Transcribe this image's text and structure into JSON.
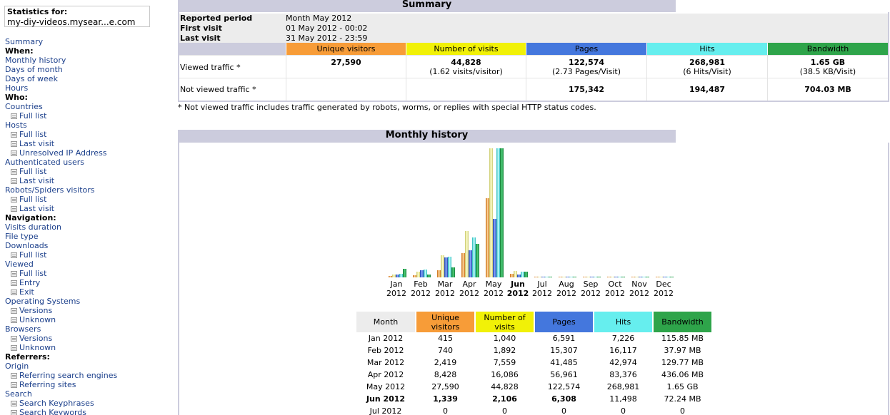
{
  "colors": {
    "unique": "#f79c38",
    "visits": "#f1f107",
    "pages": "#4477dd",
    "hits": "#66eeee",
    "bandwidth": "#2ea44a",
    "title_bg": "#ccccdd",
    "link": "#1b3f8b"
  },
  "sidebar": {
    "stats_label": "Statistics for:",
    "site": "my-diy-videos.mysear...e.com",
    "items": [
      {
        "type": "link",
        "label": "Summary"
      },
      {
        "type": "head",
        "label": "When:"
      },
      {
        "type": "link",
        "label": "Monthly history"
      },
      {
        "type": "link",
        "label": "Days of month"
      },
      {
        "type": "link",
        "label": "Days of week"
      },
      {
        "type": "link",
        "label": "Hours"
      },
      {
        "type": "head",
        "label": "Who:"
      },
      {
        "type": "link",
        "label": "Countries"
      },
      {
        "type": "sub",
        "label": "Full list"
      },
      {
        "type": "link",
        "label": "Hosts"
      },
      {
        "type": "sub",
        "label": "Full list"
      },
      {
        "type": "sub",
        "label": "Last visit"
      },
      {
        "type": "sub",
        "label": "Unresolved IP Address"
      },
      {
        "type": "link",
        "label": "Authenticated users"
      },
      {
        "type": "sub",
        "label": "Full list"
      },
      {
        "type": "sub",
        "label": "Last visit"
      },
      {
        "type": "link",
        "label": "Robots/Spiders visitors"
      },
      {
        "type": "sub",
        "label": "Full list"
      },
      {
        "type": "sub",
        "label": "Last visit"
      },
      {
        "type": "head",
        "label": "Navigation:"
      },
      {
        "type": "link",
        "label": "Visits duration"
      },
      {
        "type": "link",
        "label": "File type"
      },
      {
        "type": "link",
        "label": "Downloads"
      },
      {
        "type": "sub",
        "label": "Full list"
      },
      {
        "type": "link",
        "label": "Viewed"
      },
      {
        "type": "sub",
        "label": "Full list"
      },
      {
        "type": "sub",
        "label": "Entry"
      },
      {
        "type": "sub",
        "label": "Exit"
      },
      {
        "type": "link",
        "label": "Operating Systems"
      },
      {
        "type": "sub",
        "label": "Versions"
      },
      {
        "type": "sub",
        "label": "Unknown"
      },
      {
        "type": "link",
        "label": "Browsers"
      },
      {
        "type": "sub",
        "label": "Versions"
      },
      {
        "type": "sub",
        "label": "Unknown"
      },
      {
        "type": "head",
        "label": "Referrers:"
      },
      {
        "type": "link",
        "label": "Origin"
      },
      {
        "type": "sub",
        "label": "Referring search engines"
      },
      {
        "type": "sub",
        "label": "Referring sites"
      },
      {
        "type": "link",
        "label": "Search"
      },
      {
        "type": "sub",
        "label": "Search Keyphrases"
      },
      {
        "type": "sub",
        "label": "Search Keywords"
      }
    ]
  },
  "summary": {
    "title": "Summary",
    "reported_period_label": "Reported period",
    "reported_period": "Month May 2012",
    "first_visit_label": "First visit",
    "first_visit": "01 May 2012 - 00:02",
    "last_visit_label": "Last visit",
    "last_visit": "31 May 2012 - 23:59",
    "headers": [
      "Unique visitors",
      "Number of visits",
      "Pages",
      "Hits",
      "Bandwidth"
    ],
    "viewed_label": "Viewed traffic *",
    "viewed": [
      {
        "value": "27,590",
        "sub": ""
      },
      {
        "value": "44,828",
        "sub": "(1.62 visits/visitor)"
      },
      {
        "value": "122,574",
        "sub": "(2.73 Pages/Visit)"
      },
      {
        "value": "268,981",
        "sub": "(6 Hits/Visit)"
      },
      {
        "value": "1.65 GB",
        "sub": "(38.5 KB/Visit)"
      }
    ],
    "not_viewed_label": "Not viewed traffic *",
    "not_viewed": [
      "",
      "",
      "175,342",
      "194,487",
      "704.03 MB"
    ],
    "note": "* Not viewed traffic includes traffic generated by robots, worms, or replies with special HTTP status codes."
  },
  "monthly": {
    "title": "Monthly history",
    "headers": [
      "Month",
      "Unique visitors",
      "Number of visits",
      "Pages",
      "Hits",
      "Bandwidth"
    ],
    "rows": [
      [
        "Jan 2012",
        "415",
        "1,040",
        "6,591",
        "7,226",
        "115.85 MB"
      ],
      [
        "Feb 2012",
        "740",
        "1,892",
        "15,307",
        "16,117",
        "37.97 MB"
      ],
      [
        "Mar 2012",
        "2,419",
        "7,559",
        "41,485",
        "42,974",
        "129.77 MB"
      ],
      [
        "Apr 2012",
        "8,428",
        "16,086",
        "56,961",
        "83,376",
        "436.06 MB"
      ],
      [
        "May 2012",
        "27,590",
        "44,828",
        "122,574",
        "268,981",
        "1.65 GB"
      ],
      [
        "Jun 2012",
        "1,339",
        "2,106",
        "6,308",
        "11,498",
        "72.24 MB"
      ],
      [
        "Jul 2012",
        "0",
        "0",
        "0",
        "0",
        "0"
      ]
    ],
    "current_row": 5
  },
  "chart_data": {
    "type": "bar",
    "categories": [
      "Jan 2012",
      "Feb 2012",
      "Mar 2012",
      "Apr 2012",
      "May 2012",
      "Jun 2012",
      "Jul 2012",
      "Aug 2012",
      "Sep 2012",
      "Oct 2012",
      "Nov 2012",
      "Dec 2012"
    ],
    "month_labels": [
      "Jan",
      "Feb",
      "Mar",
      "Apr",
      "May",
      "Jun",
      "Jul",
      "Aug",
      "Sep",
      "Oct",
      "Nov",
      "Dec"
    ],
    "year_label": "2012",
    "current_index": 5,
    "series": [
      {
        "key": "unique",
        "values": [
          415,
          740,
          2419,
          8428,
          27590,
          1339,
          0,
          0,
          0,
          0,
          0,
          0
        ]
      },
      {
        "key": "visits",
        "values": [
          1040,
          1892,
          7559,
          16086,
          44828,
          2106,
          0,
          0,
          0,
          0,
          0,
          0
        ]
      },
      {
        "key": "pages",
        "values": [
          6591,
          15307,
          41485,
          56961,
          122574,
          6308,
          0,
          0,
          0,
          0,
          0,
          0
        ]
      },
      {
        "key": "hits",
        "values": [
          7226,
          16117,
          42974,
          83376,
          268981,
          11498,
          0,
          0,
          0,
          0,
          0,
          0
        ]
      },
      {
        "key": "bandwidth",
        "values": [
          115.85,
          37.97,
          129.77,
          436.06,
          1689.6,
          72.24,
          0,
          0,
          0,
          0,
          0,
          0
        ],
        "unit": "MB"
      }
    ],
    "scale_groups": [
      [
        "unique",
        "visits"
      ],
      [
        "pages",
        "hits"
      ],
      [
        "bandwidth"
      ]
    ]
  }
}
